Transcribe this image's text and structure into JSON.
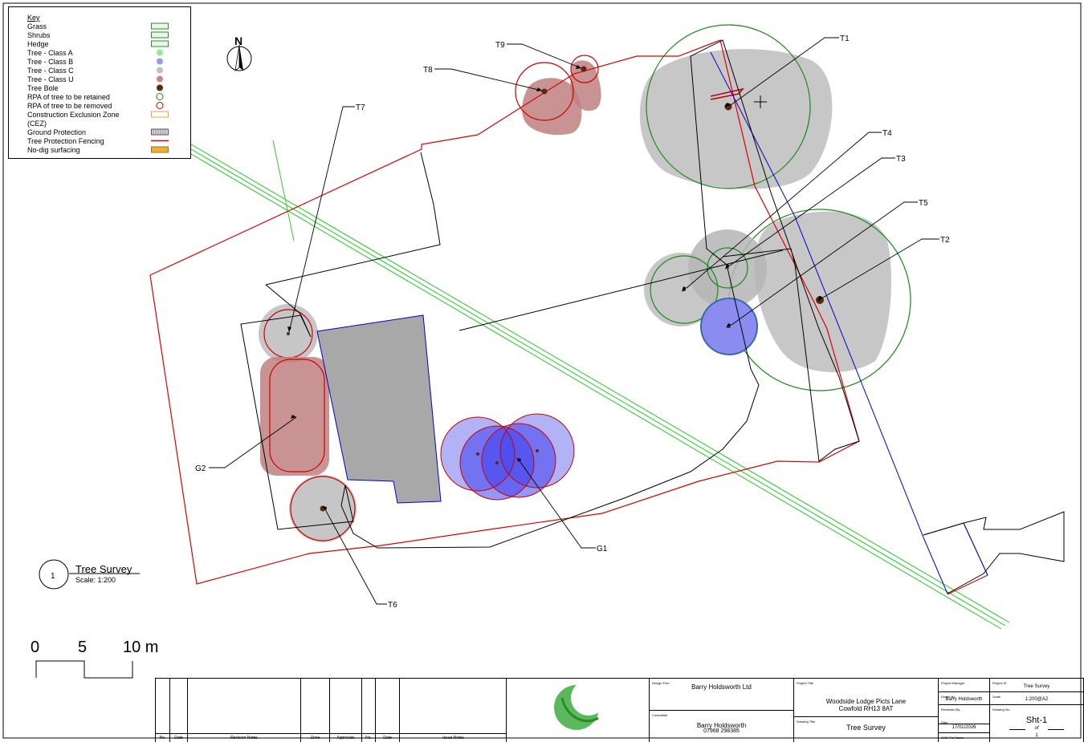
{
  "key": {
    "title": "Key",
    "items": [
      {
        "label": "Grass",
        "swatch": "grass",
        "color": "#2e8b2e"
      },
      {
        "label": "Shrubs",
        "swatch": "shrubs",
        "color": "#2e8b2e"
      },
      {
        "label": "Hedge",
        "swatch": "hedge",
        "color": "#2e8b2e"
      },
      {
        "label": "Tree - Class A",
        "swatch": "class-a",
        "color": "#90ee90"
      },
      {
        "label": "Tree - Class B",
        "swatch": "class-b",
        "color": "#9a9aee"
      },
      {
        "label": "Tree - Class C",
        "swatch": "class-c",
        "color": "#c0c0c0"
      },
      {
        "label": "Tree - Class U",
        "swatch": "class-u",
        "color": "#c48a8a"
      },
      {
        "label": "Tree Bole",
        "swatch": "bole",
        "color": "#5a2a0a"
      },
      {
        "label": "RPA of tree to be retained",
        "swatch": "rpa-retained",
        "color": "#1a8a1a"
      },
      {
        "label": "RPA of tree to be removed",
        "swatch": "rpa-removed",
        "color": "#cc0000"
      },
      {
        "label": "Construction Exclusion Zone",
        "swatch": "cez",
        "color": "#f0a040"
      },
      {
        "label": "(CEZ)",
        "swatch": "",
        "color": ""
      },
      {
        "label": "Ground Protection",
        "swatch": "ground",
        "color": "#555555"
      },
      {
        "label": "Tree Protection Fencing",
        "swatch": "fence",
        "color": "#dd0000"
      },
      {
        "label": "No-dig surfacing",
        "swatch": "nodig",
        "color": "#e8b040"
      }
    ]
  },
  "north": "N",
  "labels": {
    "t1": "T1",
    "t2": "T2",
    "t3": "T3",
    "t4": "T4",
    "t5": "T5",
    "t6": "T6",
    "t7": "T7",
    "t8": "T8",
    "t9": "T9",
    "g1": "G1",
    "g2": "G2"
  },
  "view": {
    "number": "1",
    "title": "Tree Survey",
    "scale": "Scale: 1:200"
  },
  "scalebar": {
    "l0": "0",
    "l5": "5",
    "l10": "10 m"
  },
  "titleblock": {
    "rev_headers": {
      "no": "No.",
      "date": "Date",
      "notes": "Revision Notes",
      "zone": "Zone",
      "approvals": "Approvals"
    },
    "issue_headers": {
      "no": "No.",
      "date": "Date",
      "notes": "Issue Notes"
    },
    "design_firm_label": "Design Firm",
    "design_firm": "Barry Holdsworth Ltd",
    "consultant_label": "Consultant",
    "consultant": "Barry Holdsworth",
    "phone": "07968 298385",
    "project_title_label": "Project Title",
    "project_title_1": "Woodside Lodge Picts Lane",
    "project_title_2": "Cowfold RH13 8AT",
    "drawing_title_label": "Drawing Title",
    "drawing_title": "Tree Survey",
    "pm_label": "Project Manager",
    "drawn_label": "Drawn By",
    "drawn_by": "Barry Holdsworth",
    "reviewed_label": "Reviewed By",
    "date_label": "Date",
    "date": "17/01/2026",
    "cad_label": "CAD File Name",
    "project_id_label": "Project ID",
    "project_id": "Tree Survey",
    "scale_label": "Scale",
    "scale": "1:200@A2",
    "drawing_no_label": "Drawing No.",
    "drawing_no": "Sht-1",
    "of": "of",
    "sheets": "1"
  }
}
